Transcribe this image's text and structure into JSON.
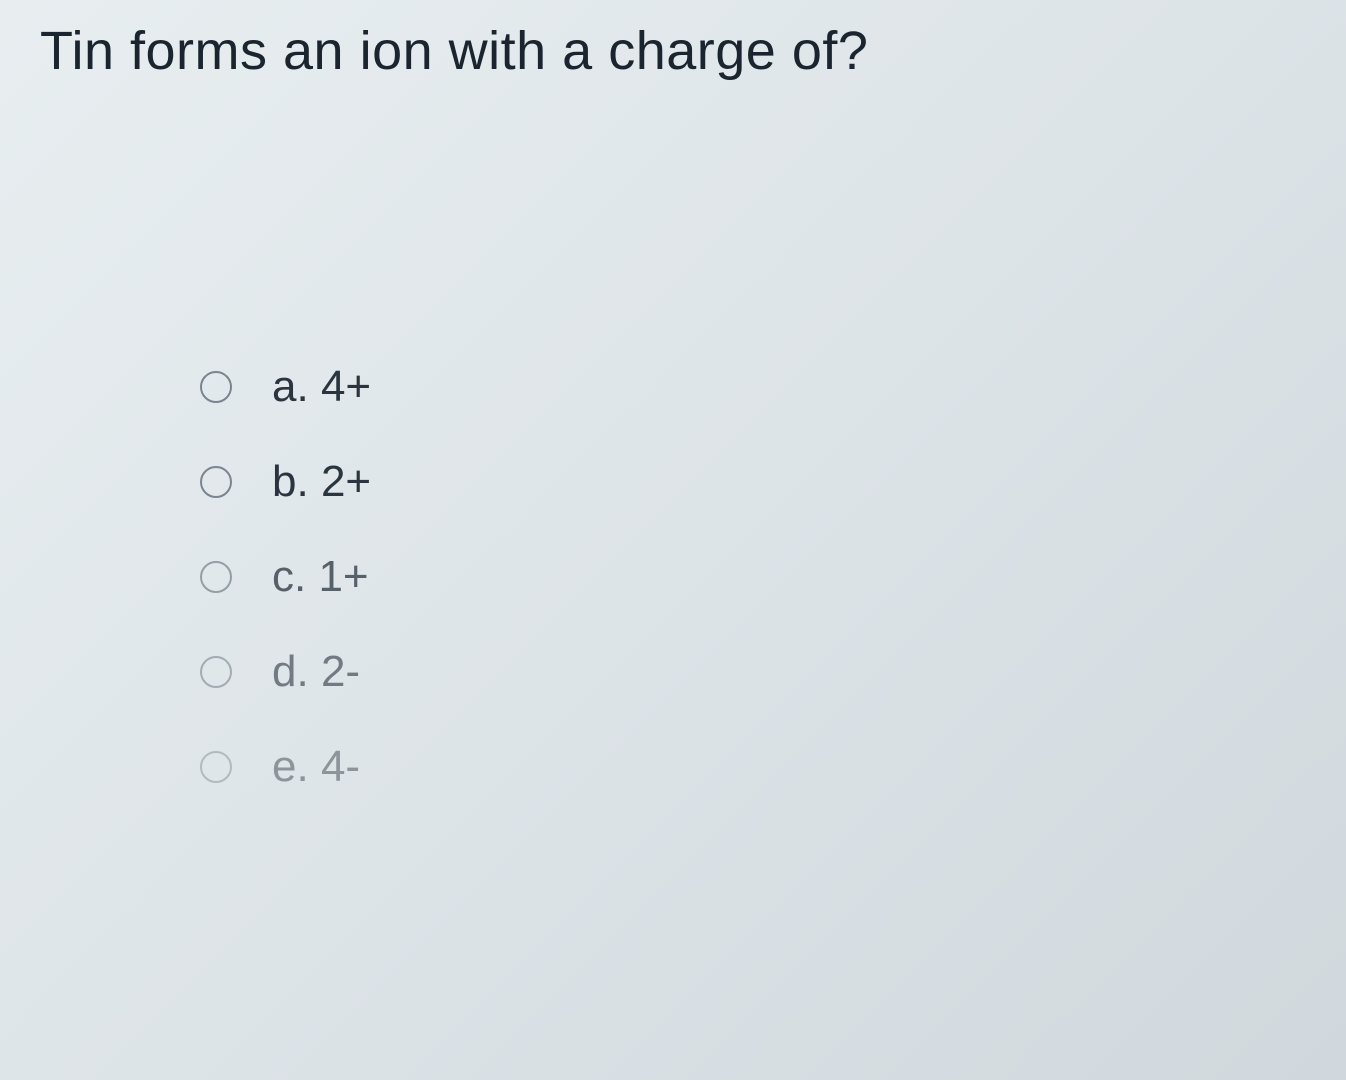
{
  "question": {
    "text": "Tin forms an ion with a charge of?"
  },
  "options": [
    {
      "letter": "a",
      "value": "4+"
    },
    {
      "letter": "b",
      "value": "2+"
    },
    {
      "letter": "c",
      "value": "1+"
    },
    {
      "letter": "d",
      "value": "2-"
    },
    {
      "letter": "e",
      "value": "4-"
    }
  ],
  "styling": {
    "background_gradient_start": "#e8eef0",
    "background_gradient_mid": "#dde4e8",
    "background_gradient_end": "#d0d8dd",
    "question_fontsize": 54,
    "question_color": "#1a2530",
    "option_fontsize": 44,
    "option_color": "#2a3540",
    "radio_border_color": "#7a8590",
    "radio_size": 32,
    "font_family": "Segoe UI",
    "font_weight": 300
  }
}
